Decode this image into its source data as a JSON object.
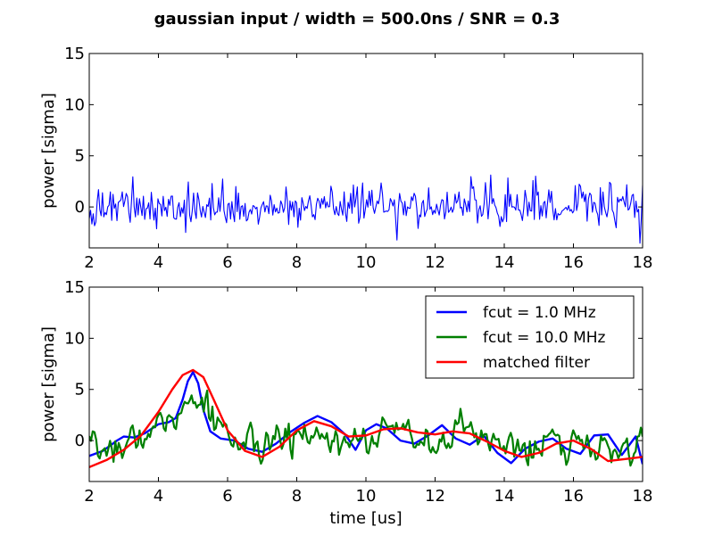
{
  "figure_title": "gaussian input / width = 500.0ns / SNR = 0.3",
  "chart_data": [
    {
      "type": "line",
      "title": "",
      "xlabel": "",
      "ylabel": "power [sigma]",
      "xlim": [
        2,
        18
      ],
      "ylim": [
        -4,
        15
      ],
      "xticks": [
        "2",
        "4",
        "6",
        "8",
        "10",
        "12",
        "14",
        "16",
        "18"
      ],
      "yticks": [
        "0",
        "5",
        "10",
        "15"
      ],
      "grid": false,
      "legend": null,
      "series": [
        {
          "name": "",
          "color": "#0000ff",
          "noise": {
            "seed": 1,
            "sigma": 1.0,
            "n": 420,
            "x_start": 2.0,
            "x_end": 18.0,
            "smooth": 0
          }
        }
      ]
    },
    {
      "type": "line",
      "title": "",
      "xlabel": "time [us]",
      "ylabel": "power [sigma]",
      "xlim": [
        2,
        18
      ],
      "ylim": [
        -4,
        15
      ],
      "xticks": [
        "2",
        "4",
        "6",
        "8",
        "10",
        "12",
        "14",
        "16",
        "18"
      ],
      "yticks": [
        "0",
        "5",
        "10",
        "15"
      ],
      "grid": false,
      "legend": "upper right",
      "series": [
        {
          "name": "fcut = 1.0 MHz",
          "color": "#0000ff",
          "x": [
            2.0,
            2.4,
            2.8,
            3.0,
            3.3,
            3.6,
            4.0,
            4.3,
            4.5,
            4.7,
            4.85,
            5.0,
            5.15,
            5.3,
            5.5,
            5.8,
            6.2,
            6.6,
            7.0,
            7.4,
            7.8,
            8.2,
            8.6,
            9.0,
            9.4,
            9.7,
            10.0,
            10.3,
            10.6,
            11.0,
            11.4,
            11.8,
            12.2,
            12.6,
            13.0,
            13.4,
            13.8,
            14.2,
            14.6,
            15.0,
            15.4,
            15.8,
            16.2,
            16.6,
            17.0,
            17.4,
            17.8,
            18.0
          ],
          "y": [
            -1.5,
            -1.0,
            0.0,
            0.4,
            0.3,
            0.7,
            1.6,
            1.8,
            2.2,
            4.0,
            5.8,
            6.7,
            5.6,
            3.0,
            0.9,
            0.2,
            0.0,
            -0.8,
            -1.1,
            -0.3,
            0.8,
            1.7,
            2.4,
            1.8,
            0.6,
            -0.9,
            1.0,
            1.6,
            1.2,
            0.0,
            -0.3,
            0.5,
            1.5,
            0.2,
            -0.4,
            0.5,
            -1.2,
            -2.2,
            -0.8,
            -0.1,
            0.2,
            -0.8,
            -1.3,
            0.5,
            0.6,
            -1.4,
            0.4,
            -2.3
          ]
        },
        {
          "name": "fcut = 10.0 MHz",
          "color": "#007f00",
          "noise": {
            "seed": 7,
            "sigma": 1.2,
            "n": 320,
            "x_start": 2.0,
            "x_end": 18.0,
            "smooth": 1,
            "follow": "matched filter",
            "follow_weight": 0.5,
            "spike_x": 5.25,
            "spike_y": 4.2
          }
        },
        {
          "name": "matched filter",
          "color": "#ff0000",
          "x": [
            2.0,
            2.5,
            3.0,
            3.5,
            4.0,
            4.4,
            4.7,
            5.0,
            5.3,
            5.6,
            6.0,
            6.5,
            7.0,
            7.5,
            8.0,
            8.5,
            9.0,
            9.5,
            10.0,
            10.5,
            11.0,
            11.5,
            12.0,
            12.5,
            13.0,
            13.5,
            14.0,
            14.5,
            15.0,
            15.5,
            16.0,
            16.5,
            17.0,
            17.5,
            18.0
          ],
          "y": [
            -2.6,
            -1.9,
            -0.9,
            0.5,
            2.8,
            5.0,
            6.4,
            6.9,
            6.2,
            4.0,
            1.0,
            -1.0,
            -1.6,
            -0.6,
            1.0,
            1.9,
            1.4,
            0.4,
            0.5,
            1.1,
            1.2,
            0.8,
            0.6,
            0.9,
            0.7,
            -0.1,
            -1.0,
            -1.6,
            -1.2,
            -0.3,
            0.0,
            -0.8,
            -2.0,
            -1.8,
            -1.6
          ]
        }
      ]
    }
  ]
}
